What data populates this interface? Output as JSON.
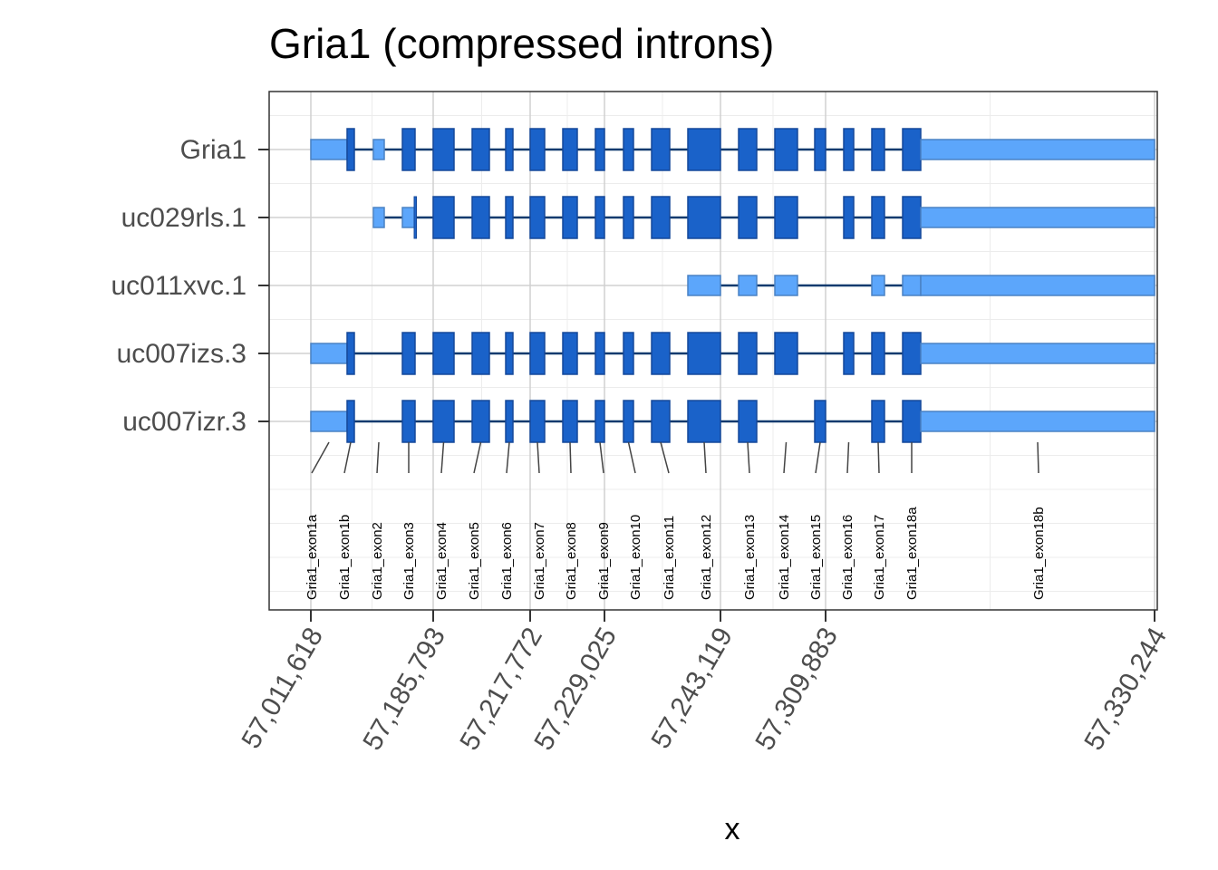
{
  "chart_data": {
    "type": "gene-structure",
    "title": "Gria1 (compressed introns)",
    "xlabel": "x",
    "x_ticks": [
      "57,011,618",
      "57,185,793",
      "57,217,772",
      "57,229,025",
      "57,243,119",
      "57,309,883",
      "57,330,244"
    ],
    "transcripts": [
      {
        "name": "Gria1",
        "exons": [
          {
            "label": "Gria1_exon1a",
            "coding": false
          },
          {
            "label": "Gria1_exon1b",
            "coding": true
          },
          {
            "label": "Gria1_exon2",
            "coding": false
          },
          {
            "label": "Gria1_exon3",
            "coding": true
          },
          {
            "label": "Gria1_exon4",
            "coding": true
          },
          {
            "label": "Gria1_exon5",
            "coding": true
          },
          {
            "label": "Gria1_exon6",
            "coding": true
          },
          {
            "label": "Gria1_exon7",
            "coding": true
          },
          {
            "label": "Gria1_exon8",
            "coding": true
          },
          {
            "label": "Gria1_exon9",
            "coding": true
          },
          {
            "label": "Gria1_exon10",
            "coding": true
          },
          {
            "label": "Gria1_exon11",
            "coding": true
          },
          {
            "label": "Gria1_exon12",
            "coding": true
          },
          {
            "label": "Gria1_exon13",
            "coding": true
          },
          {
            "label": "Gria1_exon14",
            "coding": true
          },
          {
            "label": "Gria1_exon15",
            "coding": true
          },
          {
            "label": "Gria1_exon16",
            "coding": true
          },
          {
            "label": "Gria1_exon17",
            "coding": true
          },
          {
            "label": "Gria1_exon18a",
            "coding": true
          },
          {
            "label": "Gria1_exon18b",
            "coding": false
          }
        ]
      },
      {
        "name": "uc029rls.1",
        "exons": [
          {
            "label": "Gria1_exon2",
            "coding": false
          },
          {
            "label": "Gria1_exon3",
            "coding": false,
            "coding_tail": true
          },
          {
            "label": "Gria1_exon4",
            "coding": true
          },
          {
            "label": "Gria1_exon5",
            "coding": true
          },
          {
            "label": "Gria1_exon6",
            "coding": true
          },
          {
            "label": "Gria1_exon7",
            "coding": true
          },
          {
            "label": "Gria1_exon8",
            "coding": true
          },
          {
            "label": "Gria1_exon9",
            "coding": true
          },
          {
            "label": "Gria1_exon10",
            "coding": true
          },
          {
            "label": "Gria1_exon11",
            "coding": true
          },
          {
            "label": "Gria1_exon12",
            "coding": true
          },
          {
            "label": "Gria1_exon13",
            "coding": true
          },
          {
            "label": "Gria1_exon14",
            "coding": true
          },
          {
            "label": "Gria1_exon16",
            "coding": true
          },
          {
            "label": "Gria1_exon17",
            "coding": true
          },
          {
            "label": "Gria1_exon18a",
            "coding": true
          },
          {
            "label": "Gria1_exon18b",
            "coding": false
          }
        ]
      },
      {
        "name": "uc011xvc.1",
        "exons": [
          {
            "label": "Gria1_exon12",
            "coding": false
          },
          {
            "label": "Gria1_exon13",
            "coding": false
          },
          {
            "label": "Gria1_exon14",
            "coding": false
          },
          {
            "label": "Gria1_exon17",
            "coding": false
          },
          {
            "label": "Gria1_exon18a",
            "coding": false
          },
          {
            "label": "Gria1_exon18b",
            "coding": false
          }
        ]
      },
      {
        "name": "uc007izs.3",
        "exons": [
          {
            "label": "Gria1_exon1a",
            "coding": false
          },
          {
            "label": "Gria1_exon1b",
            "coding": true
          },
          {
            "label": "Gria1_exon3",
            "coding": true
          },
          {
            "label": "Gria1_exon4",
            "coding": true
          },
          {
            "label": "Gria1_exon5",
            "coding": true
          },
          {
            "label": "Gria1_exon6",
            "coding": true
          },
          {
            "label": "Gria1_exon7",
            "coding": true
          },
          {
            "label": "Gria1_exon8",
            "coding": true
          },
          {
            "label": "Gria1_exon9",
            "coding": true
          },
          {
            "label": "Gria1_exon10",
            "coding": true
          },
          {
            "label": "Gria1_exon11",
            "coding": true
          },
          {
            "label": "Gria1_exon12",
            "coding": true
          },
          {
            "label": "Gria1_exon13",
            "coding": true
          },
          {
            "label": "Gria1_exon14",
            "coding": true
          },
          {
            "label": "Gria1_exon16",
            "coding": true
          },
          {
            "label": "Gria1_exon17",
            "coding": true
          },
          {
            "label": "Gria1_exon18a",
            "coding": true
          },
          {
            "label": "Gria1_exon18b",
            "coding": false
          }
        ]
      },
      {
        "name": "uc007izr.3",
        "exons": [
          {
            "label": "Gria1_exon1a",
            "coding": false
          },
          {
            "label": "Gria1_exon1b",
            "coding": true
          },
          {
            "label": "Gria1_exon3",
            "coding": true
          },
          {
            "label": "Gria1_exon4",
            "coding": true
          },
          {
            "label": "Gria1_exon5",
            "coding": true
          },
          {
            "label": "Gria1_exon6",
            "coding": true
          },
          {
            "label": "Gria1_exon7",
            "coding": true
          },
          {
            "label": "Gria1_exon8",
            "coding": true
          },
          {
            "label": "Gria1_exon9",
            "coding": true
          },
          {
            "label": "Gria1_exon10",
            "coding": true
          },
          {
            "label": "Gria1_exon11",
            "coding": true
          },
          {
            "label": "Gria1_exon12",
            "coding": true
          },
          {
            "label": "Gria1_exon13",
            "coding": true
          },
          {
            "label": "Gria1_exon15",
            "coding": true
          },
          {
            "label": "Gria1_exon17",
            "coding": true
          },
          {
            "label": "Gria1_exon18a",
            "coding": true
          },
          {
            "label": "Gria1_exon18b",
            "coding": false
          }
        ]
      }
    ],
    "exon_labels": [
      "Gria1_exon1a",
      "Gria1_exon1b",
      "Gria1_exon2",
      "Gria1_exon3",
      "Gria1_exon4",
      "Gria1_exon5",
      "Gria1_exon6",
      "Gria1_exon7",
      "Gria1_exon8",
      "Gria1_exon9",
      "Gria1_exon10",
      "Gria1_exon11",
      "Gria1_exon12",
      "Gria1_exon13",
      "Gria1_exon14",
      "Gria1_exon15",
      "Gria1_exon16",
      "Gria1_exon17",
      "Gria1_exon18a",
      "Gria1_exon18b"
    ],
    "colors": {
      "coding": "#1a62c9",
      "utr": "#5ca6fb",
      "intron": "#0f3a6e",
      "exon_border": "#15489a",
      "utr_border": "#4a82c4",
      "grid_major": "#d0d0d0",
      "grid_minor": "#ececec"
    },
    "grid": true
  }
}
